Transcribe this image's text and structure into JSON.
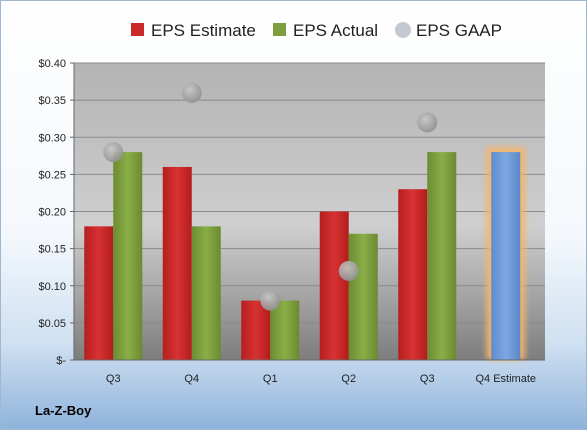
{
  "chart_data": {
    "type": "bar",
    "brand": "La-Z-Boy",
    "categories": [
      "Q3",
      "Q4",
      "Q1",
      "Q2",
      "Q3",
      "Q4 Estimate"
    ],
    "ylim": [
      0,
      0.4
    ],
    "yticks": [
      0,
      0.05,
      0.1,
      0.15,
      0.2,
      0.25,
      0.3,
      0.35,
      0.4
    ],
    "ytick_labels": [
      "$-",
      "$0.05",
      "$0.10",
      "$0.15",
      "$0.20",
      "$0.25",
      "$0.30",
      "$0.35",
      "$0.40"
    ],
    "grid": true,
    "legend_position": "top",
    "series": [
      {
        "name": "EPS Estimate",
        "kind": "bar",
        "color": "#cc2a2a",
        "values": [
          0.18,
          0.26,
          0.08,
          0.2,
          0.23,
          null
        ]
      },
      {
        "name": "EPS Actual",
        "kind": "bar",
        "color": "#7d9e3f",
        "values": [
          0.28,
          0.18,
          0.08,
          0.17,
          0.28,
          null
        ]
      },
      {
        "name": "EPS GAAP",
        "kind": "marker",
        "color": "#a6a6a6",
        "values": [
          0.28,
          0.36,
          0.08,
          0.12,
          0.32,
          null
        ]
      },
      {
        "name": "Q4 Estimate",
        "kind": "highlight-bar",
        "color": "#6f9ad8",
        "glow_color": "#f4b66b",
        "values": [
          null,
          null,
          null,
          null,
          null,
          0.28
        ]
      }
    ]
  }
}
